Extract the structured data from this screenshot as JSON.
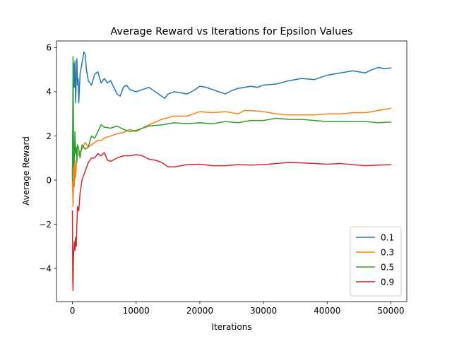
{
  "chart_data": {
    "type": "line",
    "title": "Average Reward vs Iterations for Epsilon Values",
    "xlabel": "Iterations",
    "ylabel": "Average Reward",
    "xlim": [
      -2500,
      52500
    ],
    "ylim": [
      -5.5,
      6.3
    ],
    "xticks": [
      0,
      10000,
      20000,
      30000,
      40000,
      50000
    ],
    "xtick_labels": [
      "0",
      "10000",
      "20000",
      "30000",
      "40000",
      "50000"
    ],
    "yticks": [
      -4,
      -2,
      0,
      2,
      4,
      6
    ],
    "ytick_labels": [
      "−4",
      "−2",
      "0",
      "2",
      "4",
      "6"
    ],
    "grid": false,
    "legend_position": "lower-right",
    "series": [
      {
        "name": "0.1",
        "color": "#1f77b4",
        "x": [
          0,
          100,
          200,
          300,
          400,
          500,
          600,
          700,
          800,
          900,
          1000,
          1200,
          1500,
          1800,
          2000,
          2200,
          2500,
          3000,
          3500,
          4000,
          4500,
          5000,
          5500,
          6000,
          7000,
          7500,
          8000,
          8500,
          9000,
          10000,
          11000,
          12000,
          13000,
          14000,
          14500,
          15000,
          16000,
          17000,
          18000,
          19000,
          20000,
          21000,
          22000,
          23000,
          24000,
          25000,
          26000,
          27000,
          28000,
          29000,
          30000,
          32000,
          34000,
          36000,
          38000,
          40000,
          42000,
          44000,
          46000,
          47000,
          48000,
          49000,
          50000
        ],
        "y": [
          0.2,
          3.6,
          5.3,
          4.2,
          5.4,
          3.5,
          4.5,
          5.5,
          4.3,
          4.6,
          3.5,
          4.8,
          5.3,
          5.8,
          5.7,
          5.0,
          4.5,
          4.3,
          4.8,
          4.9,
          4.4,
          4.6,
          4.4,
          4.5,
          3.9,
          3.8,
          4.2,
          4.3,
          4.1,
          4.0,
          4.1,
          4.2,
          4.0,
          3.8,
          3.7,
          3.9,
          4.0,
          3.95,
          3.9,
          4.05,
          4.25,
          4.2,
          4.1,
          4.0,
          3.9,
          4.05,
          4.15,
          4.2,
          4.25,
          4.2,
          4.3,
          4.35,
          4.5,
          4.6,
          4.55,
          4.75,
          4.85,
          4.95,
          4.85,
          5.0,
          5.1,
          5.05,
          5.08
        ]
      },
      {
        "name": "0.3",
        "color": "#ff7f0e",
        "x": [
          0,
          100,
          200,
          300,
          400,
          500,
          700,
          1000,
          1500,
          2000,
          2500,
          3000,
          3500,
          4000,
          4500,
          5000,
          6000,
          7000,
          8000,
          9000,
          10000,
          12000,
          14000,
          16000,
          18000,
          20000,
          22000,
          24000,
          26000,
          27000,
          28000,
          30000,
          32000,
          34000,
          36000,
          38000,
          40000,
          42000,
          44000,
          46000,
          48000,
          50000
        ],
        "y": [
          0.0,
          -1.2,
          0.6,
          -0.3,
          0.9,
          0.1,
          1.0,
          1.2,
          1.4,
          1.7,
          1.5,
          1.6,
          1.7,
          1.8,
          1.8,
          1.9,
          2.0,
          2.1,
          2.15,
          2.3,
          2.2,
          2.5,
          2.75,
          2.9,
          2.9,
          3.1,
          3.05,
          3.1,
          3.0,
          3.15,
          3.15,
          3.1,
          3.0,
          2.95,
          2.95,
          2.95,
          3.0,
          3.0,
          3.05,
          3.05,
          3.15,
          3.25
        ]
      },
      {
        "name": "0.5",
        "color": "#2ca02c",
        "x": [
          0,
          100,
          200,
          300,
          400,
          500,
          600,
          700,
          800,
          1000,
          1200,
          1500,
          2000,
          2500,
          3000,
          3500,
          4000,
          4500,
          5000,
          6000,
          7000,
          8000,
          9000,
          10000,
          12000,
          14000,
          16000,
          18000,
          20000,
          22000,
          24000,
          26000,
          28000,
          30000,
          32000,
          34000,
          36000,
          38000,
          40000,
          42000,
          44000,
          46000,
          48000,
          50000
        ],
        "y": [
          0.0,
          5.6,
          0.6,
          1.0,
          2.2,
          1.2,
          1.5,
          0.8,
          1.6,
          1.4,
          1.0,
          1.6,
          1.4,
          1.5,
          2.0,
          1.9,
          2.2,
          2.5,
          2.4,
          2.35,
          2.45,
          2.3,
          2.2,
          2.25,
          2.45,
          2.5,
          2.6,
          2.55,
          2.6,
          2.55,
          2.65,
          2.6,
          2.7,
          2.7,
          2.8,
          2.75,
          2.75,
          2.7,
          2.65,
          2.65,
          2.65,
          2.65,
          2.6,
          2.63
        ]
      },
      {
        "name": "0.9",
        "color": "#d62728",
        "x": [
          0,
          50,
          100,
          150,
          200,
          300,
          400,
          500,
          600,
          700,
          800,
          1000,
          1200,
          1500,
          2000,
          2500,
          3000,
          3500,
          4000,
          4500,
          5000,
          5500,
          6000,
          7000,
          8000,
          9000,
          10000,
          11000,
          12000,
          13000,
          14000,
          15000,
          16000,
          18000,
          20000,
          22000,
          24000,
          26000,
          28000,
          30000,
          32000,
          34000,
          36000,
          38000,
          40000,
          42000,
          44000,
          46000,
          48000,
          50000
        ],
        "y": [
          -1.4,
          -4.5,
          -5.0,
          -3.8,
          -3.2,
          -2.8,
          -3.2,
          -2.6,
          -3.0,
          -2.0,
          -1.2,
          -1.4,
          -0.6,
          0.0,
          0.4,
          0.8,
          1.0,
          1.0,
          1.2,
          1.1,
          1.25,
          0.9,
          0.85,
          1.0,
          1.1,
          1.1,
          1.15,
          1.1,
          0.95,
          0.9,
          0.8,
          0.6,
          0.6,
          0.7,
          0.72,
          0.65,
          0.65,
          0.7,
          0.68,
          0.7,
          0.75,
          0.8,
          0.78,
          0.75,
          0.72,
          0.75,
          0.7,
          0.65,
          0.68,
          0.7
        ]
      }
    ]
  }
}
